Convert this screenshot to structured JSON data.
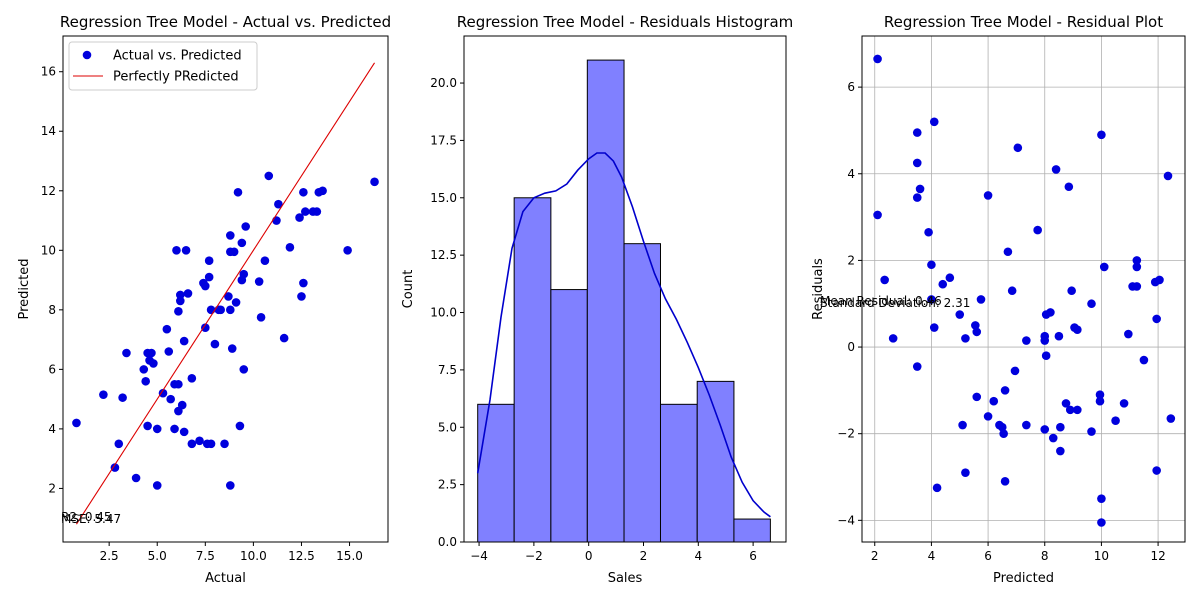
{
  "chart_data": [
    {
      "type": "scatter",
      "title": "Regression Tree Model - Actual vs. Predicted",
      "xlabel": "Actual",
      "ylabel": "Predicted",
      "xlim": [
        0.1,
        17.0
      ],
      "ylim": [
        0.2,
        17.2
      ],
      "xticks": [
        2.5,
        5.0,
        7.5,
        10.0,
        12.5,
        15.0
      ],
      "xtick_labels": [
        "2.5",
        "5.0",
        "7.5",
        "10.0",
        "12.5",
        "15.0"
      ],
      "yticks": [
        2,
        4,
        6,
        8,
        10,
        12,
        14,
        16
      ],
      "ytick_labels": [
        "2",
        "4",
        "6",
        "8",
        "10",
        "12",
        "14",
        "16"
      ],
      "grid": false,
      "legend_position": "top-left",
      "legend": [
        "Actual vs. Predicted",
        "Perfectly PRedicted"
      ],
      "marker_color": "#0000dd",
      "line_color": "#dd0000",
      "annotations": [
        "R2: 0.45",
        "MSE: 5.47"
      ],
      "series": [
        {
          "name": "Actual vs. Predicted",
          "kind": "points",
          "points": [
            [
              0.8,
              4.2
            ],
            [
              2.2,
              5.15
            ],
            [
              2.8,
              2.7
            ],
            [
              3.0,
              3.5
            ],
            [
              3.2,
              5.05
            ],
            [
              3.4,
              6.55
            ],
            [
              3.9,
              2.35
            ],
            [
              4.3,
              6.0
            ],
            [
              4.4,
              5.6
            ],
            [
              4.5,
              4.1
            ],
            [
              4.5,
              6.55
            ],
            [
              4.7,
              6.55
            ],
            [
              4.6,
              6.3
            ],
            [
              4.8,
              6.2
            ],
            [
              5.0,
              4.0
            ],
            [
              5.0,
              2.1
            ],
            [
              5.3,
              5.2
            ],
            [
              5.5,
              7.35
            ],
            [
              5.6,
              6.6
            ],
            [
              5.7,
              5.0
            ],
            [
              5.9,
              4.0
            ],
            [
              5.9,
              5.5
            ],
            [
              6.0,
              10.0
            ],
            [
              6.1,
              4.6
            ],
            [
              6.1,
              5.5
            ],
            [
              6.2,
              8.5
            ],
            [
              6.2,
              8.3
            ],
            [
              6.1,
              7.95
            ],
            [
              6.3,
              4.8
            ],
            [
              6.4,
              3.9
            ],
            [
              6.4,
              6.95
            ],
            [
              6.5,
              10.0
            ],
            [
              6.6,
              8.55
            ],
            [
              6.8,
              5.7
            ],
            [
              6.8,
              3.5
            ],
            [
              7.2,
              3.6
            ],
            [
              7.4,
              8.9
            ],
            [
              7.5,
              8.8
            ],
            [
              7.5,
              7.4
            ],
            [
              7.6,
              3.5
            ],
            [
              7.7,
              9.1
            ],
            [
              7.7,
              9.65
            ],
            [
              7.8,
              3.5
            ],
            [
              7.8,
              8.0
            ],
            [
              8.0,
              6.85
            ],
            [
              8.2,
              8.0
            ],
            [
              8.3,
              8.0
            ],
            [
              8.5,
              3.5
            ],
            [
              8.7,
              8.45
            ],
            [
              8.8,
              10.5
            ],
            [
              8.8,
              9.95
            ],
            [
              8.8,
              8.0
            ],
            [
              8.8,
              2.1
            ],
            [
              8.9,
              6.7
            ],
            [
              9.0,
              9.95
            ],
            [
              9.1,
              8.25
            ],
            [
              9.2,
              11.95
            ],
            [
              9.3,
              4.1
            ],
            [
              9.4,
              10.25
            ],
            [
              9.4,
              9.0
            ],
            [
              9.5,
              9.2
            ],
            [
              9.5,
              6.0
            ],
            [
              9.6,
              10.8
            ],
            [
              10.3,
              8.95
            ],
            [
              10.4,
              7.75
            ],
            [
              10.6,
              9.65
            ],
            [
              10.8,
              12.5
            ],
            [
              11.2,
              11.0
            ],
            [
              11.3,
              11.55
            ],
            [
              11.6,
              7.05
            ],
            [
              11.9,
              10.1
            ],
            [
              12.4,
              11.1
            ],
            [
              12.5,
              8.45
            ],
            [
              12.6,
              8.9
            ],
            [
              12.6,
              11.95
            ],
            [
              12.7,
              11.3
            ],
            [
              13.1,
              11.3
            ],
            [
              13.3,
              11.3
            ],
            [
              13.4,
              11.95
            ],
            [
              13.6,
              12.0
            ],
            [
              14.9,
              10.0
            ],
            [
              16.3,
              12.3
            ]
          ]
        },
        {
          "name": "Perfectly PRedicted",
          "kind": "line",
          "points": [
            [
              0.8,
              0.8
            ],
            [
              16.3,
              16.3
            ]
          ]
        }
      ]
    },
    {
      "type": "bar",
      "title": "Regression Tree Model - Residuals Histogram",
      "xlabel": "Sales",
      "ylabel": "Count",
      "xlim": [
        -4.55,
        7.2
      ],
      "ylim": [
        0,
        22.05
      ],
      "xticks": [
        -4,
        -2,
        0,
        2,
        4,
        6
      ],
      "xtick_labels": [
        "−4",
        "−2",
        "0",
        "2",
        "4",
        "6"
      ],
      "yticks": [
        0,
        2.5,
        5,
        7.5,
        10,
        12.5,
        15,
        17.5,
        20
      ],
      "ytick_labels": [
        "0.0",
        "2.5",
        "5.0",
        "7.5",
        "10.0",
        "12.5",
        "15.0",
        "17.5",
        "20.0"
      ],
      "grid": false,
      "bar_color": "#8080ff",
      "edge_color": "#000000",
      "kde_color": "#0000cc",
      "bin_edges": [
        -4.05,
        -2.72,
        -1.38,
        -0.05,
        1.29,
        2.62,
        3.96,
        5.3,
        6.63
      ],
      "values": [
        6,
        15,
        11,
        21,
        13,
        6,
        7,
        1
      ],
      "kde": [
        [
          -4.05,
          3.0
        ],
        [
          -3.6,
          6.2
        ],
        [
          -3.2,
          9.8
        ],
        [
          -2.8,
          12.8
        ],
        [
          -2.4,
          14.4
        ],
        [
          -2.0,
          15.0
        ],
        [
          -1.6,
          15.2
        ],
        [
          -1.2,
          15.3
        ],
        [
          -0.8,
          15.6
        ],
        [
          -0.4,
          16.2
        ],
        [
          0.0,
          16.7
        ],
        [
          0.3,
          16.95
        ],
        [
          0.6,
          16.95
        ],
        [
          0.9,
          16.6
        ],
        [
          1.2,
          15.9
        ],
        [
          1.6,
          14.6
        ],
        [
          2.0,
          13.1
        ],
        [
          2.4,
          11.7
        ],
        [
          2.8,
          10.6
        ],
        [
          3.2,
          9.7
        ],
        [
          3.6,
          8.7
        ],
        [
          4.0,
          7.6
        ],
        [
          4.4,
          6.4
        ],
        [
          4.8,
          5.1
        ],
        [
          5.2,
          3.7
        ],
        [
          5.6,
          2.6
        ],
        [
          6.0,
          1.8
        ],
        [
          6.4,
          1.3
        ],
        [
          6.63,
          1.1
        ]
      ]
    },
    {
      "type": "scatter",
      "title": "Regression Tree Model - Residual Plot",
      "xlabel": "Predicted",
      "ylabel": "Residuals",
      "xlim": [
        1.55,
        12.95
      ],
      "ylim": [
        -4.5,
        7.18
      ],
      "xticks": [
        2,
        4,
        6,
        8,
        10,
        12
      ],
      "xtick_labels": [
        "2",
        "4",
        "6",
        "8",
        "10",
        "12"
      ],
      "yticks": [
        -4,
        -2,
        0,
        2,
        4,
        6
      ],
      "ytick_labels": [
        "−4",
        "−2",
        "0",
        "2",
        "4",
        "6"
      ],
      "grid": true,
      "marker_color": "#0000dd",
      "annotations": [
        "Mean Residual: 0.46",
        "Standard Deviation: 2.31"
      ],
      "series": [
        {
          "kind": "points",
          "points": [
            [
              2.1,
              6.65
            ],
            [
              2.1,
              3.05
            ],
            [
              2.35,
              1.55
            ],
            [
              2.65,
              0.2
            ],
            [
              3.5,
              4.95
            ],
            [
              3.5,
              4.25
            ],
            [
              3.5,
              3.45
            ],
            [
              3.5,
              -0.45
            ],
            [
              3.6,
              3.65
            ],
            [
              3.9,
              2.65
            ],
            [
              4.0,
              1.9
            ],
            [
              4.0,
              1.1
            ],
            [
              4.1,
              5.2
            ],
            [
              4.1,
              0.45
            ],
            [
              4.2,
              -3.25
            ],
            [
              4.4,
              1.45
            ],
            [
              4.65,
              1.6
            ],
            [
              5.0,
              0.75
            ],
            [
              5.1,
              -1.8
            ],
            [
              5.2,
              -2.9
            ],
            [
              5.2,
              0.2
            ],
            [
              5.55,
              0.5
            ],
            [
              5.6,
              0.35
            ],
            [
              5.6,
              -1.15
            ],
            [
              5.75,
              1.1
            ],
            [
              6.0,
              -1.6
            ],
            [
              6.0,
              3.5
            ],
            [
              6.2,
              -1.25
            ],
            [
              6.4,
              -1.8
            ],
            [
              6.55,
              -2.0
            ],
            [
              6.5,
              -1.85
            ],
            [
              6.6,
              -3.1
            ],
            [
              6.6,
              -1.0
            ],
            [
              6.7,
              2.2
            ],
            [
              6.85,
              1.3
            ],
            [
              6.95,
              -0.55
            ],
            [
              7.05,
              4.6
            ],
            [
              7.35,
              0.15
            ],
            [
              7.35,
              -1.8
            ],
            [
              7.75,
              2.7
            ],
            [
              8.0,
              -1.9
            ],
            [
              8.0,
              0.25
            ],
            [
              8.0,
              0.15
            ],
            [
              8.05,
              -0.2
            ],
            [
              8.05,
              0.75
            ],
            [
              8.2,
              0.8
            ],
            [
              8.3,
              -2.1
            ],
            [
              8.4,
              4.1
            ],
            [
              8.5,
              0.25
            ],
            [
              8.55,
              -2.4
            ],
            [
              8.55,
              -1.85
            ],
            [
              8.75,
              -1.3
            ],
            [
              8.85,
              3.7
            ],
            [
              8.9,
              -1.45
            ],
            [
              8.95,
              1.3
            ],
            [
              9.05,
              0.45
            ],
            [
              9.15,
              0.4
            ],
            [
              9.15,
              -1.45
            ],
            [
              9.65,
              -1.95
            ],
            [
              9.65,
              1.0
            ],
            [
              9.95,
              -1.1
            ],
            [
              9.95,
              -1.25
            ],
            [
              10.0,
              4.9
            ],
            [
              10.0,
              -3.5
            ],
            [
              10.0,
              -4.05
            ],
            [
              10.1,
              1.85
            ],
            [
              10.5,
              -1.7
            ],
            [
              10.8,
              -1.3
            ],
            [
              10.95,
              0.3
            ],
            [
              11.1,
              1.4
            ],
            [
              11.25,
              1.4
            ],
            [
              11.25,
              2.0
            ],
            [
              11.25,
              1.85
            ],
            [
              11.5,
              -0.3
            ],
            [
              11.9,
              1.5
            ],
            [
              11.95,
              0.65
            ],
            [
              11.95,
              -2.85
            ],
            [
              12.05,
              1.55
            ],
            [
              12.35,
              3.95
            ],
            [
              12.45,
              -1.65
            ]
          ]
        }
      ]
    }
  ]
}
